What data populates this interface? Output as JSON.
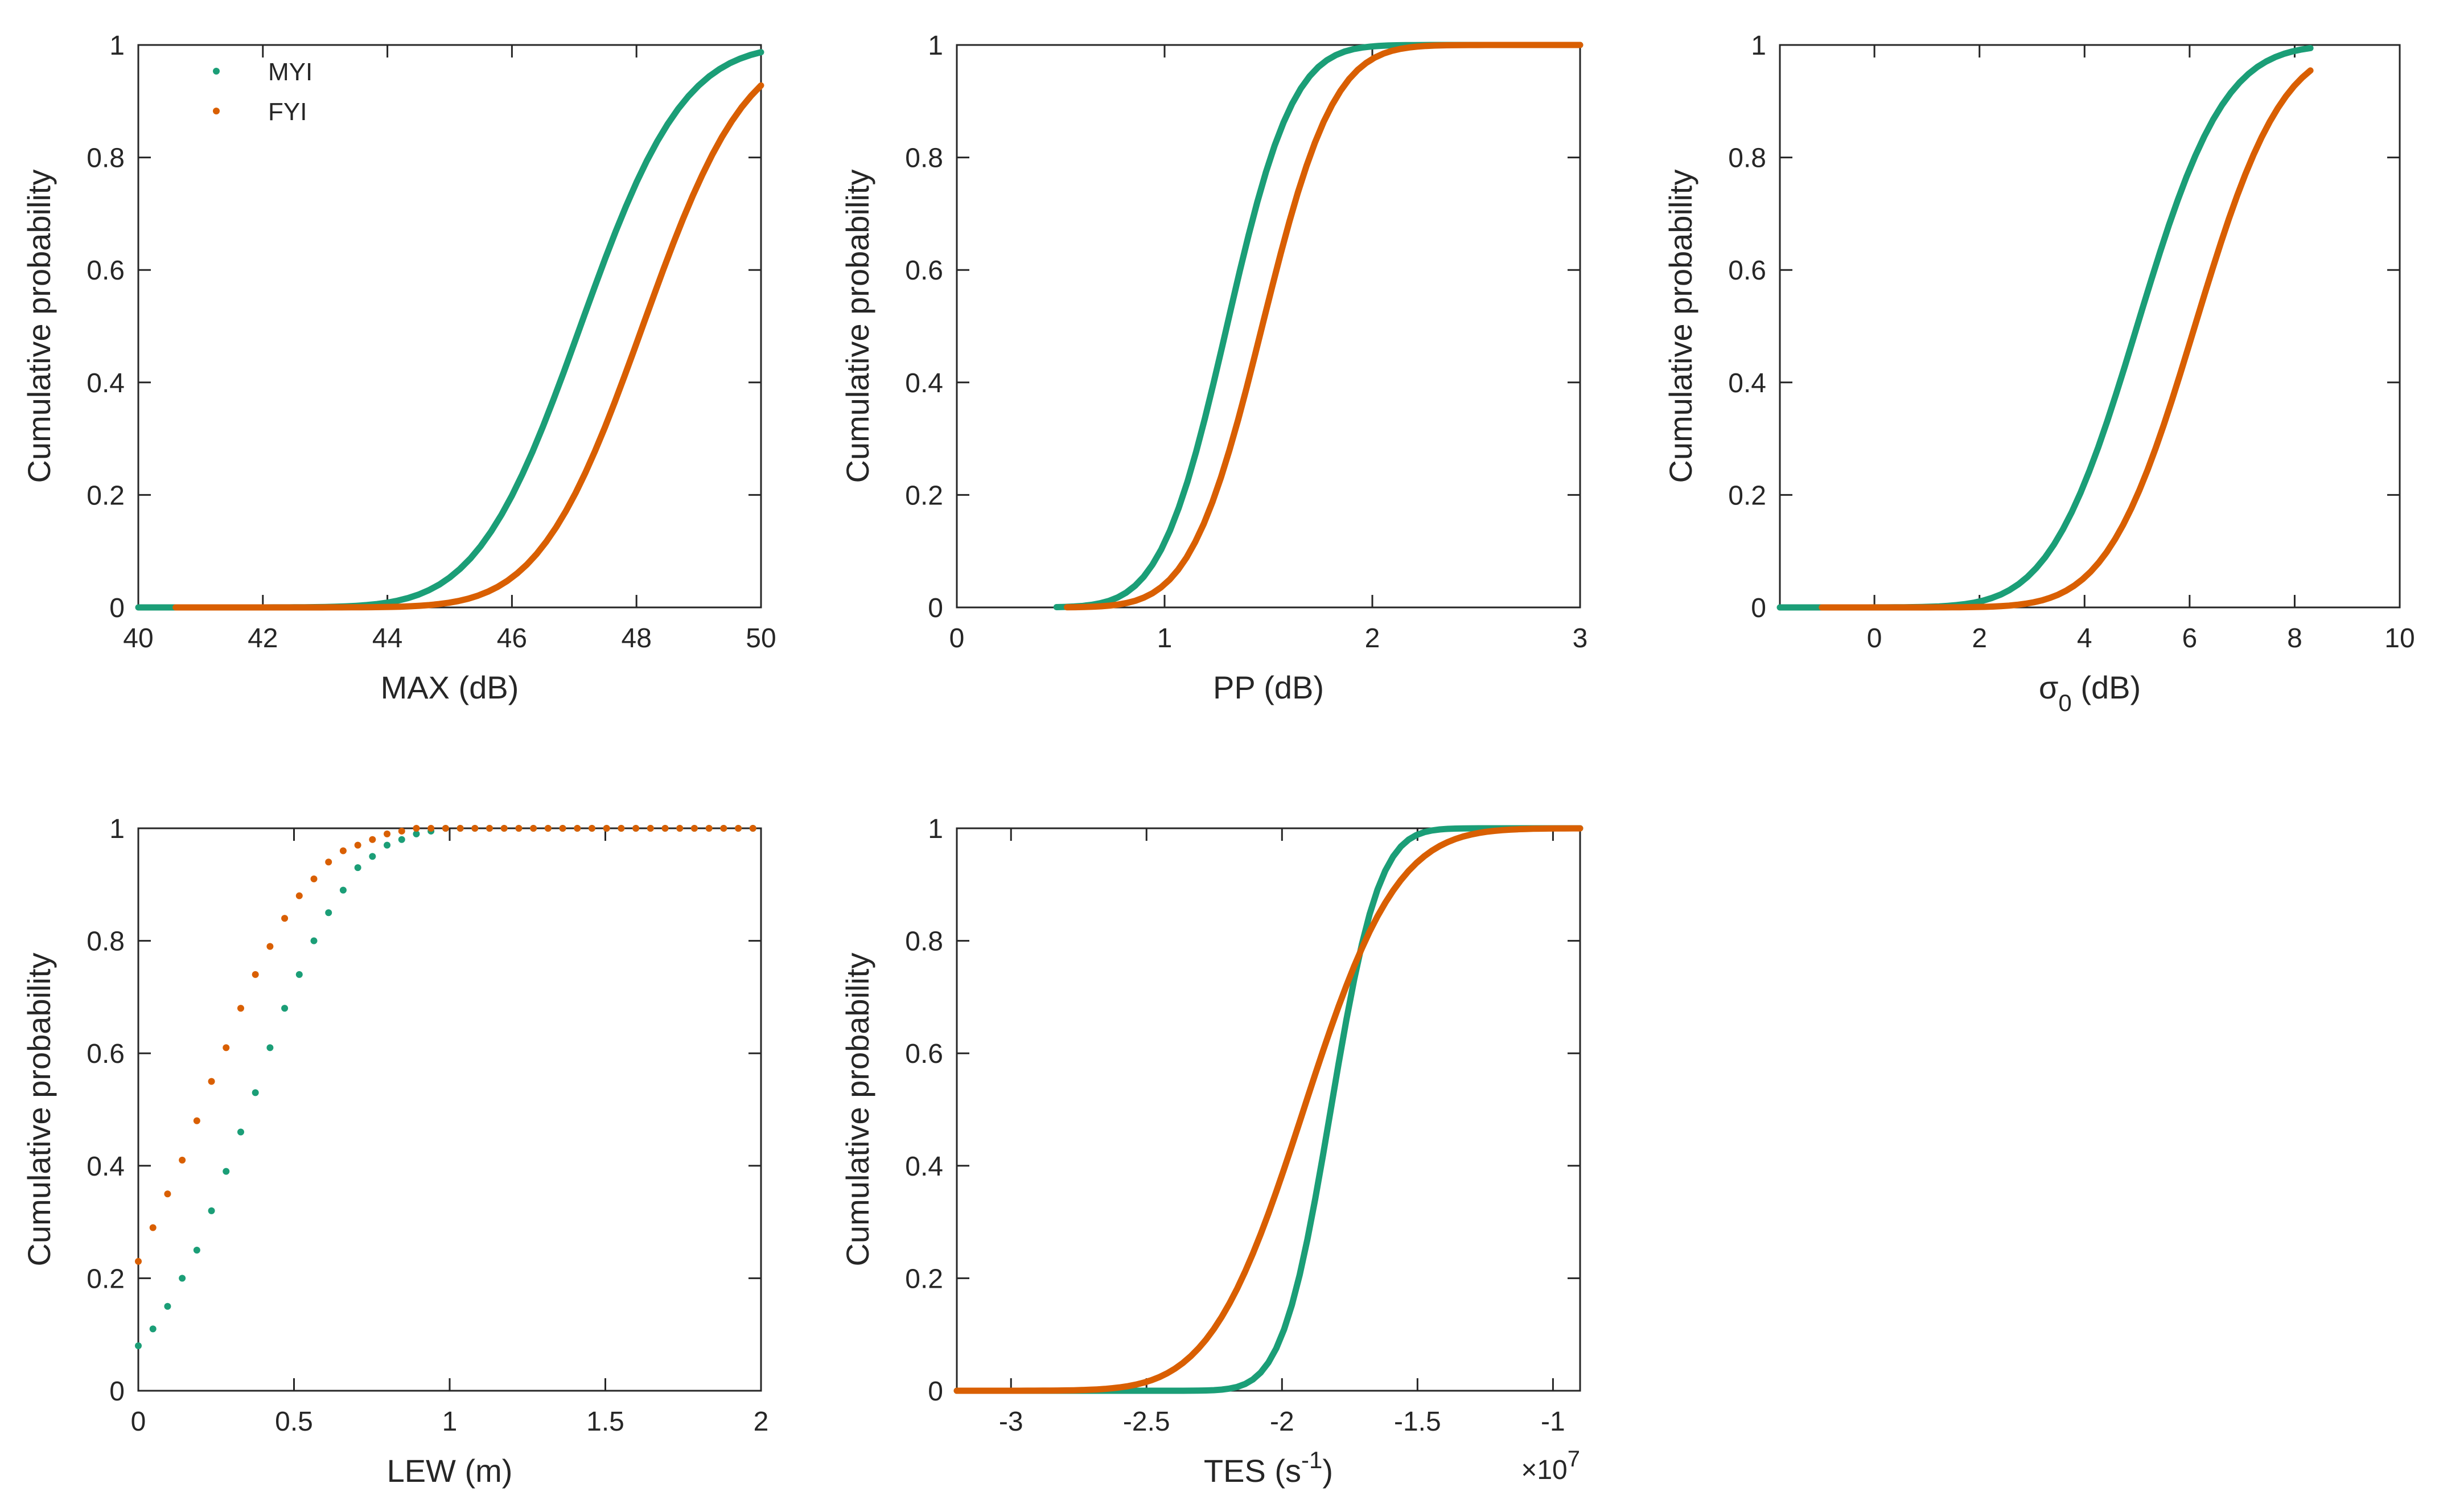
{
  "figure_title": "",
  "colors": {
    "MYI": "#1b9e77",
    "FYI": "#d95f02",
    "axis": "#262626"
  },
  "chart_data": [
    {
      "type": "line",
      "title": "",
      "xlabel": "MAX (dB)",
      "ylabel": "Cumulative probability",
      "xlim": [
        40,
        50
      ],
      "ylim": [
        0,
        1
      ],
      "xticks": [
        "40",
        "42",
        "44",
        "46",
        "48",
        "50"
      ],
      "xtick_values": [
        40,
        42,
        44,
        46,
        48,
        50
      ],
      "yticks": [
        "0",
        "0.2",
        "0.4",
        "0.6",
        "0.8",
        "1"
      ],
      "ytick_values": [
        0,
        0.2,
        0.4,
        0.6,
        0.8,
        1
      ],
      "legend": [
        "MYI",
        "FYI"
      ],
      "legend_placement": "top-left",
      "series": [
        {
          "name": "MYI",
          "dist": "normal",
          "mu": 47.1,
          "sigma": 1.3,
          "xmin": 40,
          "xmax": 50,
          "points": 60
        },
        {
          "name": "FYI",
          "dist": "normal",
          "mu": 48.1,
          "sigma": 1.3,
          "xmin": 40.6,
          "xmax": 50,
          "points": 60
        }
      ]
    },
    {
      "type": "line",
      "title": "",
      "xlabel": "PP (dB)",
      "ylabel": "Cumulative probability",
      "xlim": [
        0,
        3
      ],
      "ylim": [
        0,
        1
      ],
      "xticks": [
        "0",
        "1",
        "2",
        "3"
      ],
      "xtick_values": [
        0,
        1,
        2,
        3
      ],
      "yticks": [
        "0",
        "0.2",
        "0.4",
        "0.6",
        "0.8",
        "1"
      ],
      "ytick_values": [
        0,
        0.2,
        0.4,
        0.6,
        0.8,
        1
      ],
      "series": [
        {
          "name": "MYI",
          "dist": "normal",
          "mu": 1.3,
          "sigma": 0.25,
          "xmin": 0.48,
          "xmax": 3,
          "points": 60
        },
        {
          "name": "FYI",
          "dist": "normal",
          "mu": 1.47,
          "sigma": 0.27,
          "xmin": 0.53,
          "xmax": 3,
          "points": 60
        }
      ]
    },
    {
      "type": "line",
      "title": "",
      "xlabel": "σ",
      "xlabel_subscript": "0",
      "xlabel_suffix": " (dB)",
      "ylabel": "Cumulative probability",
      "xlim": [
        -1.8,
        10
      ],
      "ylim": [
        0,
        1
      ],
      "xticks": [
        "0",
        "2",
        "4",
        "6",
        "8",
        "10"
      ],
      "xtick_values": [
        0,
        2,
        4,
        6,
        8,
        10
      ],
      "yticks": [
        "0",
        "0.2",
        "0.4",
        "0.6",
        "0.8",
        "1"
      ],
      "ytick_values": [
        0,
        0.2,
        0.4,
        0.6,
        0.8,
        1
      ],
      "series": [
        {
          "name": "MYI",
          "dist": "normal",
          "mu": 5.0,
          "sigma": 1.3,
          "xmin": -1.8,
          "xmax": 8.3,
          "points": 60
        },
        {
          "name": "FYI",
          "dist": "normal",
          "mu": 6.1,
          "sigma": 1.3,
          "xmin": -1.0,
          "xmax": 8.3,
          "points": 60
        }
      ]
    },
    {
      "type": "scatter",
      "title": "",
      "xlabel": "LEW (m)",
      "ylabel": "Cumulative probability",
      "xlim": [
        0,
        2
      ],
      "ylim": [
        0,
        1
      ],
      "xticks": [
        "0",
        "0.5",
        "1",
        "1.5",
        "2"
      ],
      "xtick_values": [
        0,
        0.5,
        1,
        1.5,
        2
      ],
      "yticks": [
        "0",
        "0.2",
        "0.4",
        "0.6",
        "0.8",
        "1"
      ],
      "ytick_values": [
        0,
        0.2,
        0.4,
        0.6,
        0.8,
        1
      ],
      "series": [
        {
          "name": "MYI",
          "x": [
            0,
            0.047,
            0.094,
            0.141,
            0.188,
            0.235,
            0.282,
            0.329,
            0.376,
            0.423,
            0.47,
            0.517,
            0.564,
            0.611,
            0.658,
            0.705,
            0.752,
            0.799,
            0.846,
            0.893,
            0.94,
            0.987,
            1.034,
            1.081,
            1.128,
            1.175,
            1.222,
            1.269,
            1.316,
            1.363,
            1.41,
            1.457,
            1.504,
            1.551,
            1.598,
            1.645,
            1.692,
            1.739,
            1.786,
            1.833,
            1.88,
            1.927,
            1.974
          ],
          "y": [
            0.08,
            0.11,
            0.15,
            0.2,
            0.25,
            0.32,
            0.39,
            0.46,
            0.53,
            0.61,
            0.68,
            0.74,
            0.8,
            0.85,
            0.89,
            0.93,
            0.95,
            0.97,
            0.98,
            0.99,
            0.995,
            1,
            1,
            1,
            1,
            1,
            1,
            1,
            1,
            1,
            1,
            1,
            1,
            1,
            1,
            1,
            1,
            1,
            1,
            1,
            1,
            1,
            1
          ]
        },
        {
          "name": "FYI",
          "x": [
            0,
            0.047,
            0.094,
            0.141,
            0.188,
            0.235,
            0.282,
            0.329,
            0.376,
            0.423,
            0.47,
            0.517,
            0.564,
            0.611,
            0.658,
            0.705,
            0.752,
            0.799,
            0.846,
            0.893,
            0.94,
            0.987,
            1.034,
            1.081,
            1.128,
            1.175,
            1.222,
            1.269,
            1.316,
            1.363,
            1.41,
            1.457,
            1.504,
            1.551,
            1.598,
            1.645,
            1.692,
            1.739,
            1.786,
            1.833,
            1.88,
            1.927,
            1.974
          ],
          "y": [
            0.23,
            0.29,
            0.35,
            0.41,
            0.48,
            0.55,
            0.61,
            0.68,
            0.74,
            0.79,
            0.84,
            0.88,
            0.91,
            0.94,
            0.96,
            0.97,
            0.98,
            0.99,
            0.995,
            1,
            1,
            1,
            1,
            1,
            1,
            1,
            1,
            1,
            1,
            1,
            1,
            1,
            1,
            1,
            1,
            1,
            1,
            1,
            1,
            1,
            1,
            1,
            1
          ]
        }
      ]
    },
    {
      "type": "line",
      "title": "",
      "xlabel": "TES (s",
      "xlabel_superscript": "-1",
      "xlabel_suffix": ")",
      "ylabel": "Cumulative probability",
      "xlim": [
        -3.2,
        -0.9
      ],
      "ylim": [
        0,
        1
      ],
      "xticks": [
        "-3",
        "-2.5",
        "-2",
        "-1.5",
        "-1"
      ],
      "xtick_values": [
        -3,
        -2.5,
        -2,
        -1.5,
        -1
      ],
      "yticks": [
        "0",
        "0.2",
        "0.4",
        "0.6",
        "0.8",
        "1"
      ],
      "ytick_values": [
        0,
        0.2,
        0.4,
        0.6,
        0.8,
        1
      ],
      "exponent_base": "×10",
      "exponent_power": "7",
      "series": [
        {
          "name": "MYI",
          "dist": "normal",
          "mu": -1.82,
          "sigma": 0.14,
          "xmin": -3.2,
          "xmax": -0.9,
          "points": 80
        },
        {
          "name": "FYI",
          "dist": "normal",
          "mu": -1.92,
          "sigma": 0.27,
          "xmin": -3.2,
          "xmax": -0.9,
          "points": 80
        }
      ]
    }
  ]
}
